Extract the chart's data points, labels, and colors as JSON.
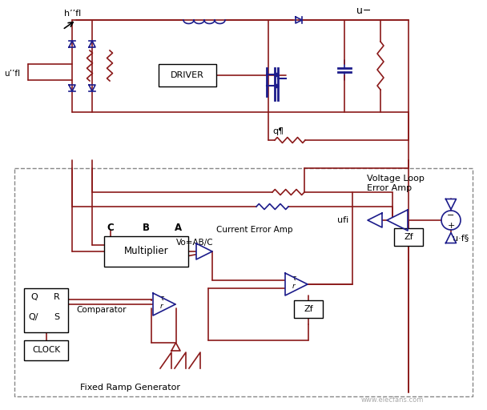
{
  "bg_color": "#ffffff",
  "rc": "#8B1A1A",
  "bc": "#1C1C8B",
  "gc": "#555555",
  "watermark": "www.elecfans.com",
  "labels": {
    "h_fl": "h’’fl",
    "u_fl": "u’’fl",
    "u_minus": "u−",
    "driver": "DRIVER",
    "q_mark": "q¶",
    "voltage_loop": "Voltage Loop\nError Amp",
    "ufi": "ufi",
    "u_fs": "u·f§",
    "C_label": "C",
    "B_label": "B",
    "A_label": "A",
    "multiplier": "Multiplier",
    "vo_eq": "Vo=AB/C",
    "current_error": "Current Error Amp",
    "Q_label": "Q",
    "R_label": "R",
    "Q_bar": "Q/",
    "S_label": "S",
    "comparator": "Comparator",
    "clock": "CLOCK",
    "fixed_ramp": "Fixed Ramp Generator",
    "Zf": "Zf",
    "minus_sign": "−",
    "plus_sign": "+"
  }
}
